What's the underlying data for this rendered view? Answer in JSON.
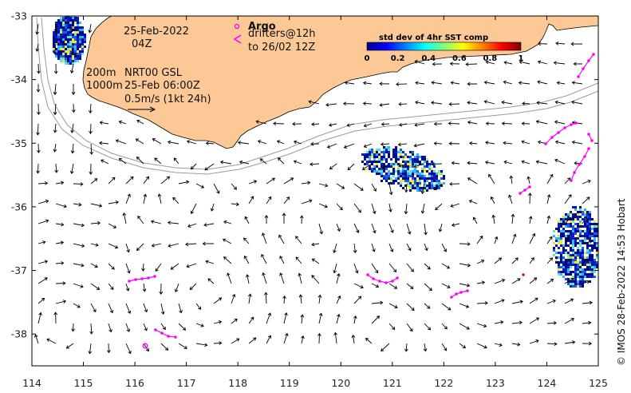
{
  "map": {
    "lon_range": [
      114,
      125
    ],
    "lat_range": [
      -38.5,
      -33
    ],
    "x_ticks": [
      "114",
      "115",
      "116",
      "117",
      "118",
      "119",
      "120",
      "121",
      "122",
      "123",
      "124",
      "125"
    ],
    "y_ticks": [
      "-33",
      "-34",
      "-35",
      "-36",
      "-37",
      "-38"
    ],
    "land_color": "#fcc896",
    "coast_color": "#000000",
    "isobath_color": "#9a9a9a",
    "drifter_color": "#ff00ff",
    "sst_colors": [
      "#000a8c",
      "#0a1ebe",
      "#1e5ae6",
      "#32b4ff",
      "#64e6c8",
      "#f0e632"
    ]
  },
  "annotations": {
    "date": "25-Feb-2022",
    "time": "04Z",
    "isobath_200": "200m",
    "isobath_1000": "1000m",
    "product": "NRT00 GSL",
    "product_time": "25-Feb 06:00Z",
    "scale": "0.5m/s (1kt 24h)",
    "argo_label": "Argo",
    "drifters_label": "drifters@12h",
    "drifters_to": "to 26/02 12Z"
  },
  "colorbar": {
    "title": "std dev of 4hr SST comp",
    "ticks": [
      "0",
      "0.2",
      "0.4",
      "0.6",
      "0.8",
      "1"
    ],
    "range": [
      0,
      1
    ],
    "colormap": "jet"
  },
  "credit": "© IMOS 28-Feb-2022 14:53 Hobart"
}
